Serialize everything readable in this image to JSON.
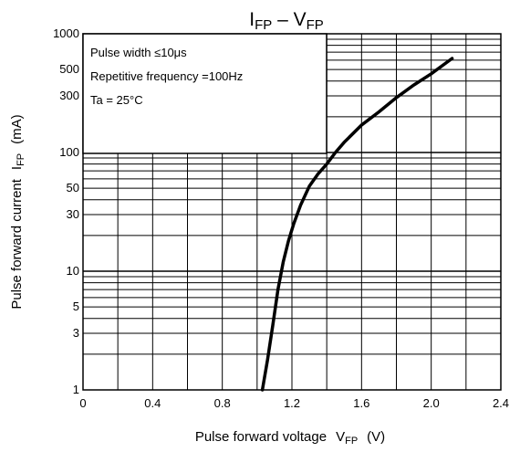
{
  "chart_data": {
    "type": "line",
    "title": "I_FP – V_FP",
    "title_parts": {
      "main1": "I",
      "sub1": "FP",
      "sep": " – ",
      "main2": "V",
      "sub2": "FP"
    },
    "xlabel": "Pulse forward voltage  V_FP  (V)",
    "xlabel_parts": {
      "text": "Pulse forward voltage",
      "sym": "V",
      "sub": "FP",
      "unit": "(V)"
    },
    "ylabel": "Pulse forward current  I_FP  (mA)",
    "ylabel_parts": {
      "text": "Pulse forward current",
      "sym": "I",
      "sub": "FP",
      "unit": "(mA)"
    },
    "xlim": [
      0,
      2.4
    ],
    "ylim": [
      1,
      1000
    ],
    "yscale": "log",
    "xticks": [
      "0",
      "0.4",
      "0.8",
      "1.2",
      "1.6",
      "2.0",
      "2.4"
    ],
    "yticks": [
      "1",
      "3",
      "5",
      "10",
      "30",
      "50",
      "100",
      "300",
      "500",
      "1000"
    ],
    "grid": true,
    "annotation_box": {
      "position": "top-left",
      "lines": [
        "Pulse width ≤10μs",
        "Repetitive frequency =100Hz",
        "Ta = 25°C"
      ]
    },
    "series": [
      {
        "x": [
          1.03,
          1.06,
          1.09,
          1.12,
          1.15,
          1.18,
          1.21,
          1.25,
          1.3,
          1.35,
          1.4,
          1.45,
          1.5,
          1.6,
          1.7,
          1.8,
          1.9,
          2.0,
          2.12
        ],
        "y": [
          1,
          1.8,
          3.5,
          7,
          12,
          18,
          25,
          36,
          52,
          66,
          80,
          100,
          122,
          170,
          220,
          290,
          370,
          460,
          620
        ],
        "color": "#000000"
      }
    ]
  }
}
